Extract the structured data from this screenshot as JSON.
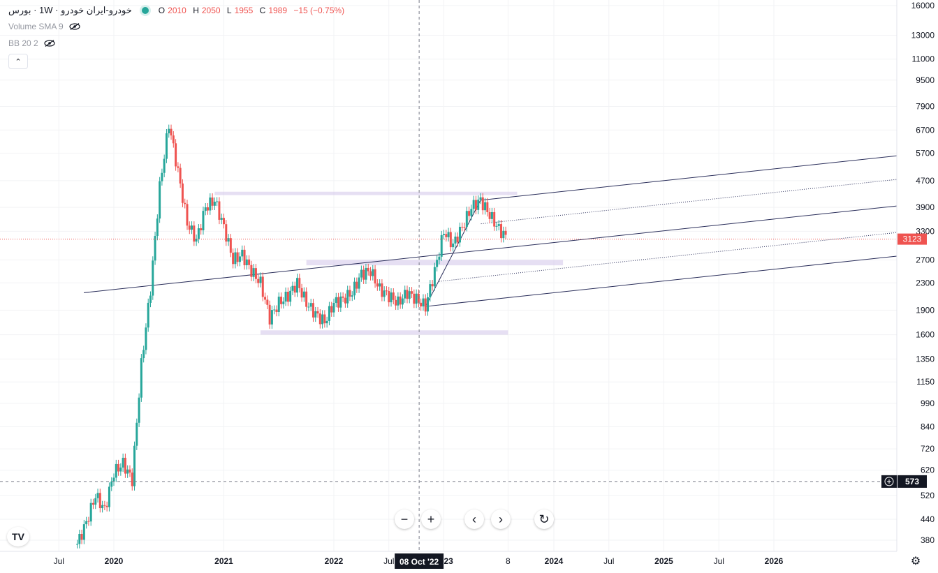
{
  "legend": {
    "title": "خودرو-ایران خودرو · 1W · بورس",
    "ohlc": [
      {
        "k": "O",
        "v": "2010"
      },
      {
        "k": "H",
        "v": "2050"
      },
      {
        "k": "L",
        "v": "1955"
      },
      {
        "k": "C",
        "v": "1989"
      }
    ],
    "change": "−15 (−0.75%)",
    "indicator1": "Volume SMA 9",
    "indicator2": "BB 20 2"
  },
  "controls": {
    "zoom_out": "−",
    "zoom_in": "+",
    "scroll_left": "‹",
    "scroll_right": "›",
    "reset": "↻",
    "collapse": "⌃",
    "logo": "TV",
    "settings": "⚙"
  },
  "crosshair": {
    "date_label": "08 Oct '22",
    "price_label": "573"
  },
  "last_price": {
    "value": 3123,
    "label": "3123"
  },
  "chart_data": {
    "type": "candlestick",
    "scale": "log",
    "y_ticks": [
      380,
      440,
      520,
      620,
      720,
      840,
      990,
      1150,
      1350,
      1600,
      1900,
      2300,
      2700,
      3300,
      3900,
      4700,
      5700,
      6700,
      7900,
      9500,
      11000,
      13000,
      16000
    ],
    "x_ticks": [
      {
        "label": "Jul",
        "x": "2019-07"
      },
      {
        "label": "2020",
        "x": "2020-01"
      },
      {
        "label": "2021",
        "x": "2021-01"
      },
      {
        "label": "2022",
        "x": "2022-01"
      },
      {
        "label": "Jul",
        "x": "2022-07"
      },
      {
        "label": "2023",
        "x": "2023-01"
      },
      {
        "label": "8",
        "x": "2023-08"
      },
      {
        "label": "2024",
        "x": "2024-01"
      },
      {
        "label": "Jul",
        "x": "2024-07"
      },
      {
        "label": "2025",
        "x": "2025-01"
      },
      {
        "label": "Jul",
        "x": "2025-07"
      },
      {
        "label": "2026",
        "x": "2026-01"
      }
    ],
    "price_path": [
      [
        "2019-09",
        370
      ],
      [
        "2019-10",
        430
      ],
      [
        "2019-11",
        520
      ],
      [
        "2019-12",
        470
      ],
      [
        "2020-01",
        610
      ],
      [
        "2020-02",
        650
      ],
      [
        "2020-03",
        580
      ],
      [
        "2020-04",
        1300
      ],
      [
        "2020-05",
        2200
      ],
      [
        "2020-06",
        4500
      ],
      [
        "2020-07",
        7000
      ],
      [
        "2020-08",
        5000
      ],
      [
        "2020-09",
        3500
      ],
      [
        "2020-10",
        3100
      ],
      [
        "2020-11",
        3900
      ],
      [
        "2020-12",
        4100
      ],
      [
        "2021-01",
        3400
      ],
      [
        "2021-02",
        2700
      ],
      [
        "2021-03",
        2800
      ],
      [
        "2021-04",
        2500
      ],
      [
        "2021-05",
        2300
      ],
      [
        "2021-06",
        1800
      ],
      [
        "2021-07",
        2000
      ],
      [
        "2021-08",
        2100
      ],
      [
        "2021-09",
        2300
      ],
      [
        "2021-10",
        2000
      ],
      [
        "2021-11",
        1850
      ],
      [
        "2021-12",
        1750
      ],
      [
        "2022-01",
        2000
      ],
      [
        "2022-02",
        2050
      ],
      [
        "2022-03",
        2150
      ],
      [
        "2022-04",
        2450
      ],
      [
        "2022-05",
        2500
      ],
      [
        "2022-06",
        2200
      ],
      [
        "2022-07",
        2100
      ],
      [
        "2022-08",
        2000
      ],
      [
        "2022-09",
        2150
      ],
      [
        "2022-10",
        2050
      ],
      [
        "2022-11",
        1950
      ],
      [
        "2022-12",
        2500
      ],
      [
        "2023-01",
        3300
      ],
      [
        "2023-02",
        3000
      ],
      [
        "2023-03",
        3400
      ],
      [
        "2023-04",
        3900
      ],
      [
        "2023-05",
        4100
      ],
      [
        "2023-06",
        3700
      ],
      [
        "2023-07",
        3350
      ],
      [
        "2023-08",
        3120
      ]
    ],
    "drawings": {
      "upper_channel": [
        [
          "2020-12",
          4700
        ],
        [
          "2023-05",
          4600
        ]
      ],
      "zones": [
        {
          "from": "2020-12",
          "to": "2023-09",
          "low": 4250,
          "high": 4350
        },
        {
          "from": "2021-10",
          "to": "2024-02",
          "low": 2600,
          "high": 2700
        },
        {
          "from": "2021-05",
          "to": "2023-08",
          "low": 1600,
          "high": 1650
        }
      ]
    }
  }
}
